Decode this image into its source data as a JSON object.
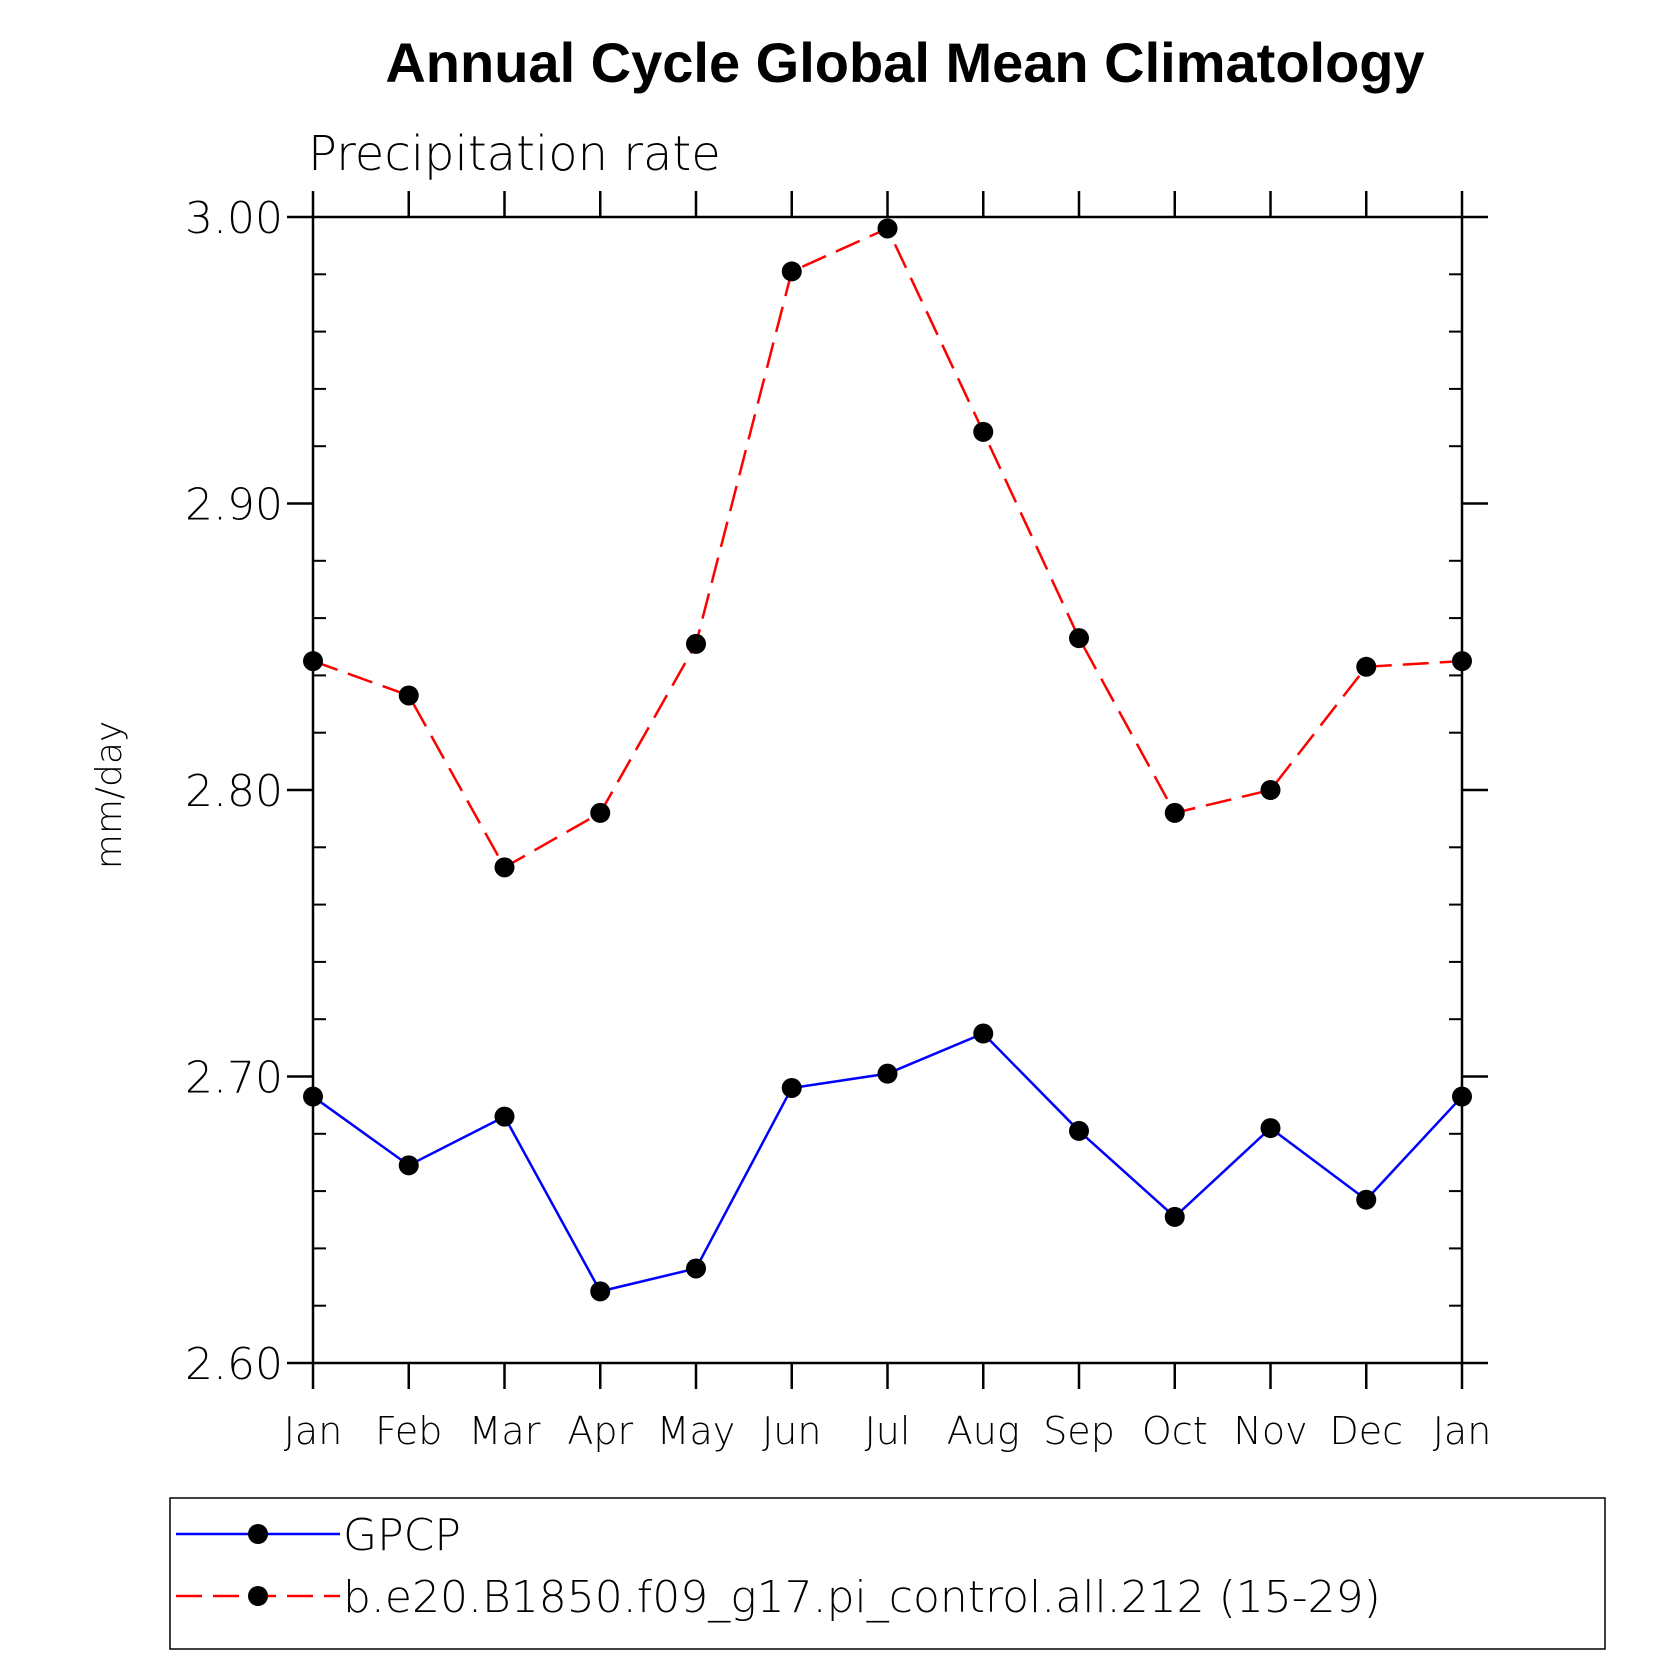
{
  "chart_data": {
    "type": "line",
    "title": "Annual Cycle Global Mean Climatology",
    "subtitle": "Precipitation rate",
    "ylabel": "mm/day",
    "xlabel": "",
    "ylim": [
      2.6,
      3.0
    ],
    "yticks": [
      "2.60",
      "2.70",
      "2.80",
      "2.90",
      "3.00"
    ],
    "categories": [
      "Jan",
      "Feb",
      "Mar",
      "Apr",
      "May",
      "Jun",
      "Jul",
      "Aug",
      "Sep",
      "Oct",
      "Nov",
      "Dec",
      "Jan"
    ],
    "series": [
      {
        "name": "GPCP",
        "color": "#0000ff",
        "dash": "solid",
        "values": [
          2.693,
          2.669,
          2.686,
          2.625,
          2.633,
          2.696,
          2.701,
          2.715,
          2.681,
          2.651,
          2.682,
          2.657,
          2.693
        ]
      },
      {
        "name": "b.e20.B1850.f09_g17.pi_control.all.212 (15-29)",
        "color": "#ff0000",
        "dash": "dashed",
        "values": [
          2.845,
          2.833,
          2.773,
          2.792,
          2.851,
          2.981,
          2.996,
          2.925,
          2.853,
          2.792,
          2.8,
          2.843,
          2.845
        ]
      }
    ],
    "marker": "filled-circle",
    "grid": false,
    "legend_placement": "bottom"
  }
}
